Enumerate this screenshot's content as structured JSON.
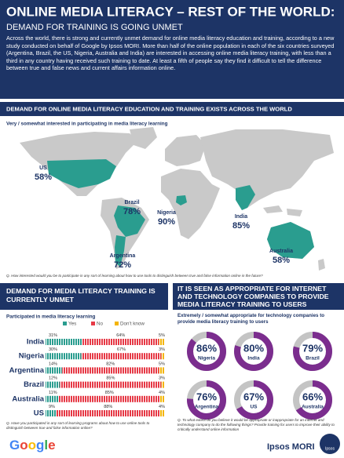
{
  "header": {
    "title": "ONLINE MEDIA LITERACY – REST OF THE WORLD:",
    "subtitle": "DEMAND FOR TRAINING IS GOING UNMET"
  },
  "intro": "Across the world, there is strong and currently unmet demand for online media literacy education and training, according to a new study conducted on behalf of Google by Ipsos MORI. More than half of the online population in each of the six countries surveyed (Argentina, Brazil, the US, Nigeria, Australia and India) are interested in accessing online media literacy training, with less than a third in any country having received such training to date. At least a fifth of people say they find it difficult to tell the difference between true and false news and current affairs information online.",
  "chart_data": [
    {
      "type": "map",
      "section_title": "DEMAND FOR ONLINE MEDIA LITERACY EDUCATION AND TRAINING EXISTS ACROSS THE WORLD",
      "title": "Very / somewhat interested in participating in media literacy learning",
      "categories": [
        "US",
        "Brazil",
        "Nigeria",
        "India",
        "Australia",
        "Argentina"
      ],
      "values": [
        58,
        78,
        90,
        85,
        58,
        72
      ],
      "value_labels": [
        "58%",
        "78%",
        "90%",
        "85%",
        "58%",
        "72%"
      ],
      "color": "#2a9d8f",
      "footnote": "Q.   How interested would you be to participate in any sort of learning about how to use tools to distinguish between true and false information online in the future?"
    },
    {
      "type": "stacked-bar",
      "section_title": "DEMAND FOR MEDIA LITERACY TRAINING IS CURRENTLY UNMET",
      "title": "Participated in media literacy learning",
      "categories": [
        "India",
        "Nigeria",
        "Argentina",
        "Brazil",
        "Australia",
        "US"
      ],
      "series": [
        {
          "name": "Yes",
          "color": "#2a9d8f",
          "values": [
            31,
            30,
            14,
            12,
            11,
            9
          ],
          "value_labels": [
            "31%",
            "30%",
            "14%",
            "12%",
            "11%",
            "9%"
          ]
        },
        {
          "name": "No",
          "color": "#e63946",
          "values": [
            64,
            67,
            82,
            85,
            85,
            88
          ],
          "value_labels": [
            "64%",
            "67%",
            "82%",
            "85%",
            "85%",
            "88%"
          ]
        },
        {
          "name": "Don't know",
          "color": "#f4b400",
          "values": [
            5,
            3,
            5,
            3,
            4,
            4
          ],
          "value_labels": [
            "5%",
            "3%",
            "5%",
            "3%",
            "4%",
            "4%"
          ]
        }
      ],
      "footnote": "Q.   Have you participated in any sort of learning programs about how to use online tools to distinguish between true and false information online?"
    },
    {
      "type": "donut",
      "section_title": "IT IS SEEN AS APPROPRIATE FOR INTERNET AND TECHNOLOGY COMPANIES TO PROVIDE MEDIA LITERACY TRAINING TO USERS",
      "title": "Extremely / somewhat appropriate for technology companies to provide media literacy training to users",
      "categories": [
        "Nigeria",
        "India",
        "Brazil",
        "Argentina",
        "US",
        "Australia"
      ],
      "values": [
        86,
        80,
        79,
        76,
        67,
        66
      ],
      "value_labels": [
        "86%",
        "80%",
        "79%",
        "76%",
        "67%",
        "66%"
      ],
      "color": "#7b2d8e",
      "rest_color": "#c4c4c4",
      "footnote": "Q.   To what extent do you believe it would be appropriate or inappropriate for an internet and technology company to do the following things? Provide training for users to improve their ability to critically understand online information"
    }
  ],
  "logos": {
    "google": "Google",
    "ipsos_mori": "Ipsos MORI",
    "ipsos_badge": "Ipsos"
  }
}
